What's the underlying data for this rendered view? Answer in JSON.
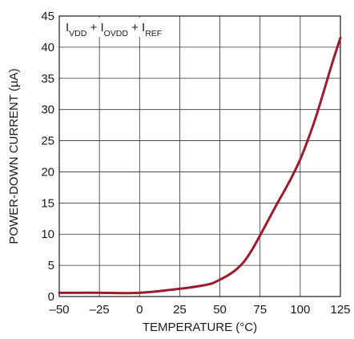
{
  "chart_data": {
    "type": "line",
    "xlabel": "TEMPERATURE (°C)",
    "ylabel": "POWER-DOWN CURRENT (µA)",
    "xlim": [
      -50,
      125
    ],
    "ylim": [
      0,
      45
    ],
    "x_ticks": [
      -50,
      -25,
      0,
      25,
      50,
      75,
      100,
      125
    ],
    "x_tick_labels": [
      "–50",
      "–25",
      "0",
      "25",
      "50",
      "75",
      "100",
      "125"
    ],
    "y_ticks": [
      0,
      5,
      10,
      15,
      20,
      25,
      30,
      35,
      40,
      45
    ],
    "y_tick_labels": [
      "0",
      "5",
      "10",
      "15",
      "20",
      "25",
      "30",
      "35",
      "40",
      "45"
    ],
    "grid": true,
    "legend": {
      "placement": "top-left",
      "parts": [
        {
          "main": "I",
          "sub": "VDD"
        },
        {
          "main": " + I",
          "sub": "OVDD"
        },
        {
          "main": " + I",
          "sub": "REF"
        }
      ]
    },
    "series": [
      {
        "color": "#9b1c2c",
        "points": [
          [
            -50,
            0.6
          ],
          [
            -40,
            0.6
          ],
          [
            -25,
            0.6
          ],
          [
            -10,
            0.55
          ],
          [
            0,
            0.6
          ],
          [
            10,
            0.8
          ],
          [
            20,
            1.1
          ],
          [
            30,
            1.4
          ],
          [
            40,
            1.8
          ],
          [
            45,
            2.1
          ],
          [
            50,
            2.7
          ],
          [
            55,
            3.4
          ],
          [
            60,
            4.3
          ],
          [
            65,
            5.6
          ],
          [
            70,
            7.5
          ],
          [
            75,
            9.8
          ],
          [
            80,
            12.2
          ],
          [
            85,
            14.6
          ],
          [
            90,
            16.9
          ],
          [
            95,
            19.3
          ],
          [
            100,
            22.0
          ],
          [
            105,
            25.3
          ],
          [
            110,
            29.0
          ],
          [
            115,
            33.2
          ],
          [
            120,
            37.5
          ],
          [
            125,
            41.5
          ]
        ]
      }
    ]
  }
}
